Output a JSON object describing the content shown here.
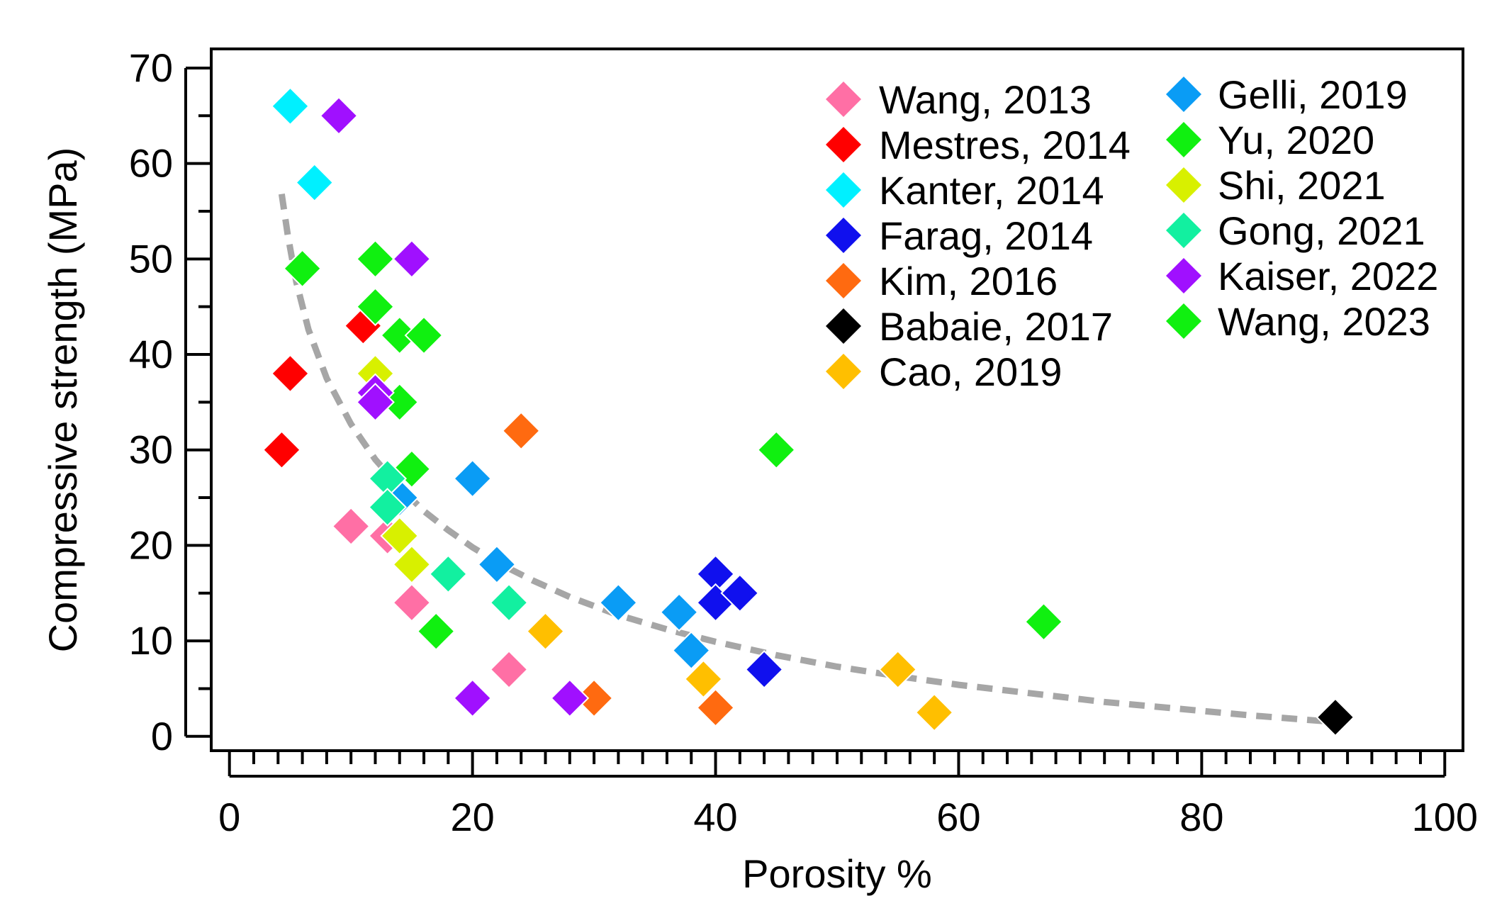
{
  "chart_data": {
    "type": "scatter",
    "title": "",
    "xlabel": "Porosity %",
    "ylabel": "Compressive strength (MPa)",
    "xlim": [
      -1.5,
      101.5
    ],
    "ylim": [
      -1.5,
      72
    ],
    "xticks": [
      0,
      20,
      40,
      60,
      80,
      100
    ],
    "xtick_labels": [
      "0",
      "20",
      "40",
      "60",
      "80",
      "100"
    ],
    "yticks": [
      0,
      10,
      20,
      30,
      40,
      50,
      60,
      70
    ],
    "ytick_labels": [
      "0",
      "10",
      "20",
      "30",
      "40",
      "50",
      "60",
      "70"
    ],
    "grid": false,
    "legend_position": "top-right",
    "trend_line": {
      "name": "fit",
      "style": "dashed",
      "color": "#a6a6a6",
      "x": [
        4.3,
        4.8,
        5.5,
        6.5,
        8,
        10,
        12,
        14,
        16,
        18,
        20,
        22.5,
        25,
        28,
        32,
        36,
        40,
        45,
        50,
        55,
        60,
        66,
        72,
        78,
        84,
        91
      ],
      "y": [
        56.8,
        52.5,
        47.6,
        42.6,
        37.5,
        32.7,
        29.0,
        26.1,
        23.6,
        21.6,
        19.8,
        17.9,
        16.3,
        14.6,
        12.7,
        11.2,
        9.9,
        8.5,
        7.3,
        6.3,
        5.4,
        4.5,
        3.6,
        2.9,
        2.2,
        1.5
      ]
    },
    "series": [
      {
        "name": "Wang, 2013",
        "color": "#ff6fa5",
        "x": [
          10,
          13,
          15,
          23
        ],
        "y": [
          22,
          21,
          14,
          7
        ]
      },
      {
        "name": "Mestres, 2014",
        "color": "#ff0000",
        "x": [
          4.3,
          5,
          11
        ],
        "y": [
          30,
          38,
          43
        ]
      },
      {
        "name": "Kanter, 2014",
        "color": "#00f0ff",
        "x": [
          5,
          7
        ],
        "y": [
          66,
          58
        ]
      },
      {
        "name": "Farag, 2014",
        "color": "#1010ee",
        "x": [
          40,
          40,
          42,
          44
        ],
        "y": [
          17,
          14,
          15,
          7
        ]
      },
      {
        "name": "Kim, 2016",
        "color": "#ff6a10",
        "x": [
          24,
          30,
          40
        ],
        "y": [
          32,
          4,
          3
        ]
      },
      {
        "name": "Babaie, 2017",
        "color": "#000000",
        "x": [
          91
        ],
        "y": [
          2
        ]
      },
      {
        "name": "Cao, 2019",
        "color": "#ffbf00",
        "x": [
          26,
          39,
          55,
          58
        ],
        "y": [
          11,
          6,
          7,
          2.5
        ]
      },
      {
        "name": "Gelli, 2019",
        "color": "#0a9cf5",
        "x": [
          14,
          20,
          22,
          32,
          37,
          38
        ],
        "y": [
          25,
          27,
          18,
          14,
          13,
          9
        ]
      },
      {
        "name": "Yu, 2020",
        "color": "#10f010",
        "x": [
          6,
          12,
          12,
          14,
          14,
          15,
          16,
          17,
          45
        ],
        "y": [
          49,
          50,
          45,
          42,
          35,
          28,
          42,
          11,
          30
        ]
      },
      {
        "name": "Shi, 2021",
        "color": "#d8f000",
        "x": [
          12,
          14,
          15
        ],
        "y": [
          38,
          21,
          18
        ]
      },
      {
        "name": "Gong, 2021",
        "color": "#12f0a0",
        "x": [
          13,
          13,
          18,
          23
        ],
        "y": [
          27,
          24,
          17,
          14
        ]
      },
      {
        "name": "Kaiser, 2022",
        "color": "#a010ff",
        "x": [
          9,
          15,
          12,
          12,
          20,
          28
        ],
        "y": [
          65,
          50,
          36,
          35,
          4,
          4
        ]
      },
      {
        "name": "Wang, 2023",
        "color": "#10f010",
        "x": [
          67
        ],
        "y": [
          12
        ]
      }
    ]
  }
}
